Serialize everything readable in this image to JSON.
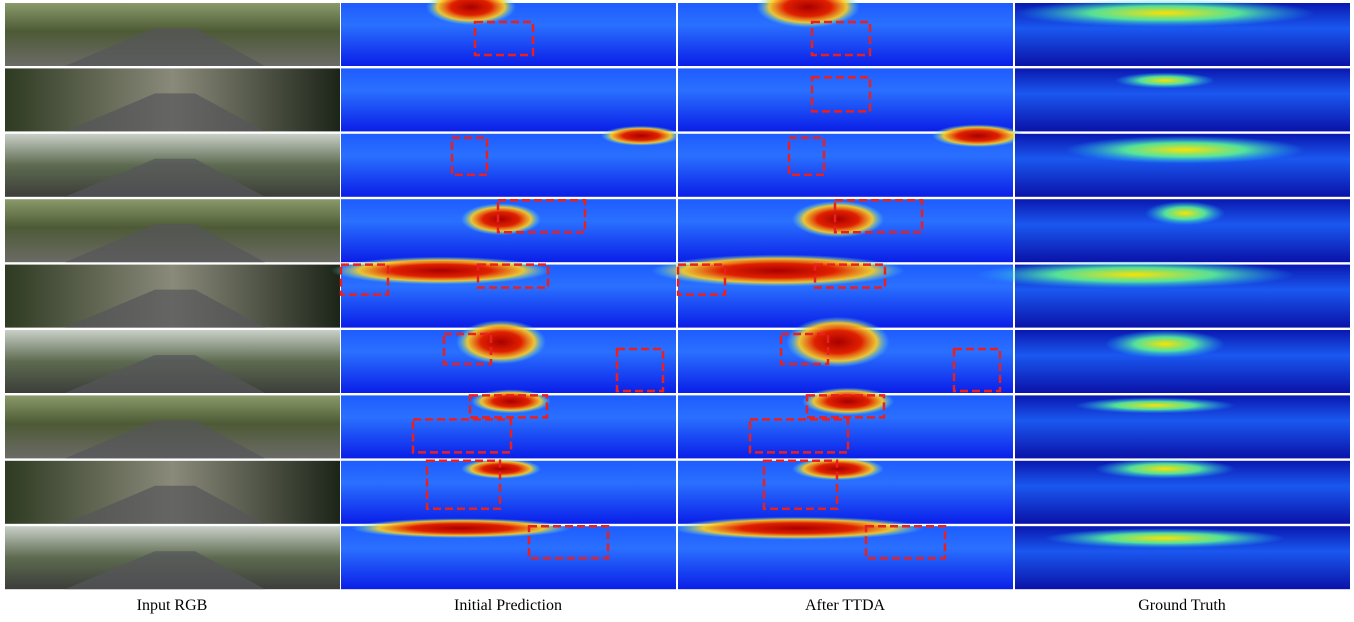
{
  "columns": [
    "Input RGB",
    "Initial Prediction",
    "After TTDA",
    "Ground Truth"
  ]
}
